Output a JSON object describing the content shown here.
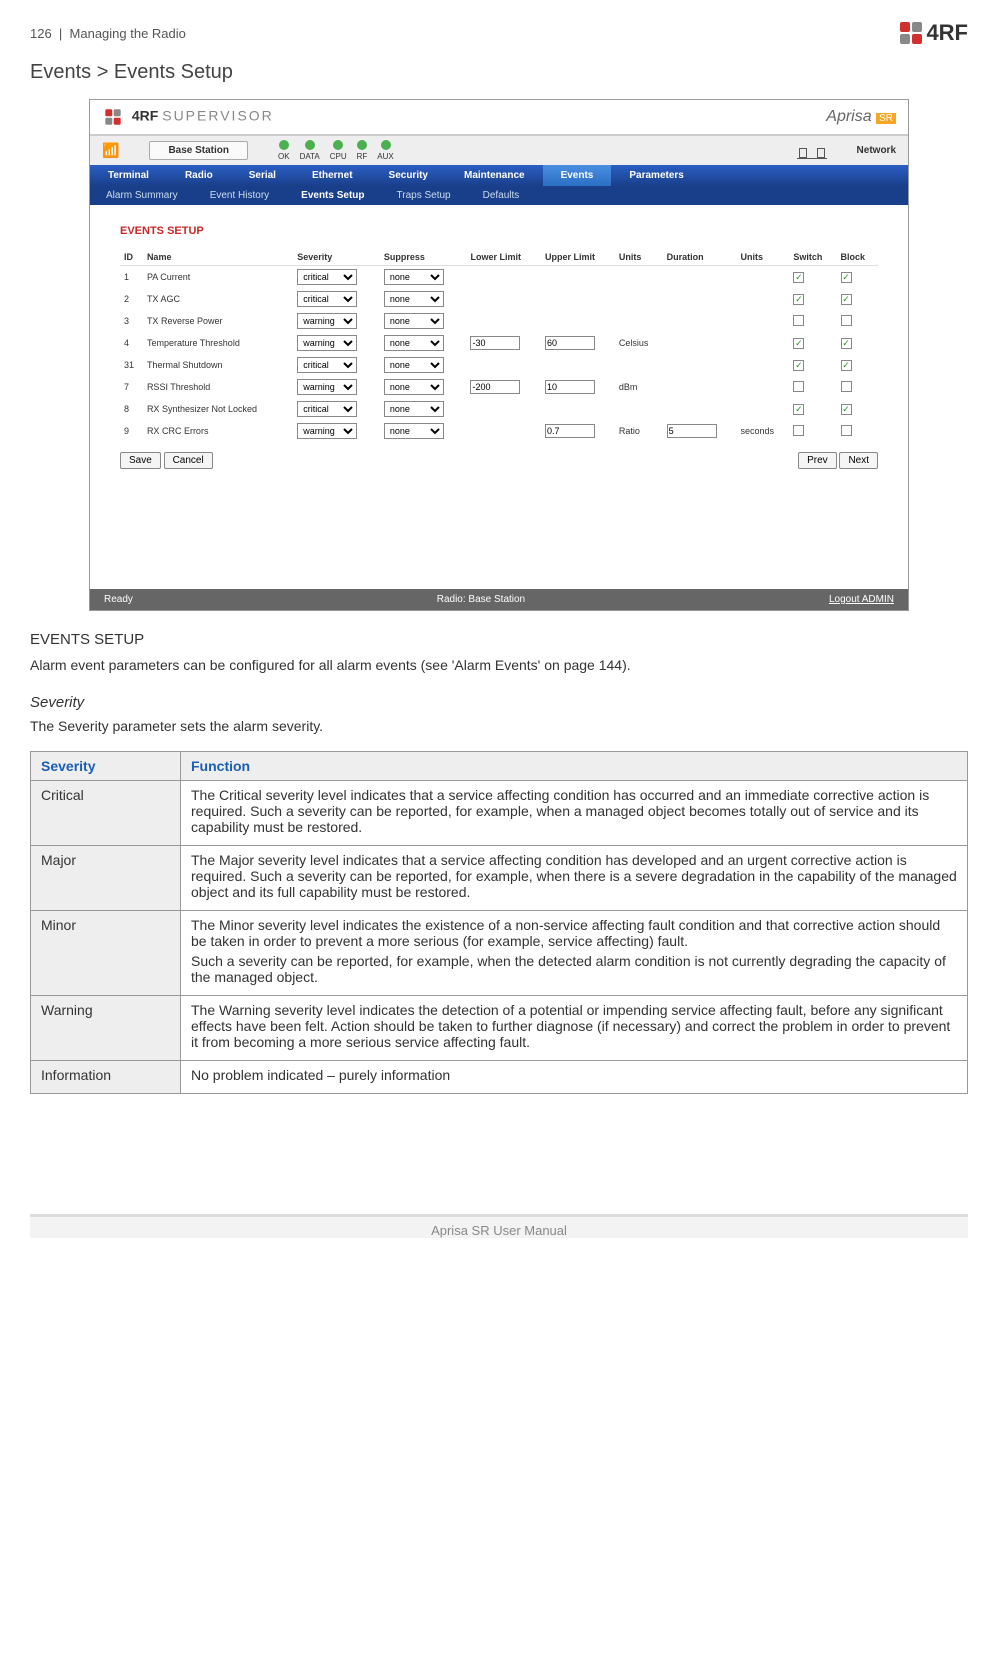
{
  "header": {
    "page_num": "126",
    "section": "Managing the Radio",
    "brand": "4RF"
  },
  "breadcrumb": "Events > Events Setup",
  "screenshot": {
    "supervisor": "SUPERVISOR",
    "aprisa": "Aprisa",
    "sr": "SR",
    "station_btn": "Base Station",
    "leds": [
      "OK",
      "DATA",
      "CPU",
      "RF",
      "AUX"
    ],
    "network": "Network",
    "nav_main": [
      "Terminal",
      "Radio",
      "Serial",
      "Ethernet",
      "Security",
      "Maintenance",
      "Events",
      "Parameters"
    ],
    "nav_main_active": 6,
    "nav_sub": [
      "Alarm Summary",
      "Event History",
      "Events Setup",
      "Traps Setup",
      "Defaults"
    ],
    "nav_sub_active": 2,
    "events_title": "EVENTS SETUP",
    "cols": [
      "ID",
      "Name",
      "Severity",
      "Suppress",
      "Lower Limit",
      "Upper Limit",
      "Units",
      "Duration",
      "Units",
      "Switch",
      "Block"
    ],
    "rows": [
      {
        "id": "1",
        "name": "PA Current",
        "sev": "critical",
        "sup": "none",
        "ll": "",
        "ul": "",
        "u1": "",
        "dur": "",
        "u2": "",
        "sw": true,
        "bl": true
      },
      {
        "id": "2",
        "name": "TX AGC",
        "sev": "critical",
        "sup": "none",
        "ll": "",
        "ul": "",
        "u1": "",
        "dur": "",
        "u2": "",
        "sw": true,
        "bl": true
      },
      {
        "id": "3",
        "name": "TX Reverse Power",
        "sev": "warning",
        "sup": "none",
        "ll": "",
        "ul": "",
        "u1": "",
        "dur": "",
        "u2": "",
        "sw": false,
        "bl": false
      },
      {
        "id": "4",
        "name": "Temperature Threshold",
        "sev": "warning",
        "sup": "none",
        "ll": "-30",
        "ul": "60",
        "u1": "Celsius",
        "dur": "",
        "u2": "",
        "sw": true,
        "bl": true
      },
      {
        "id": "31",
        "name": "Thermal Shutdown",
        "sev": "critical",
        "sup": "none",
        "ll": "",
        "ul": "",
        "u1": "",
        "dur": "",
        "u2": "",
        "sw": true,
        "bl": true
      },
      {
        "id": "7",
        "name": "RSSI Threshold",
        "sev": "warning",
        "sup": "none",
        "ll": "-200",
        "ul": "10",
        "u1": "dBm",
        "dur": "",
        "u2": "",
        "sw": false,
        "bl": false
      },
      {
        "id": "8",
        "name": "RX Synthesizer Not Locked",
        "sev": "critical",
        "sup": "none",
        "ll": "",
        "ul": "",
        "u1": "",
        "dur": "",
        "u2": "",
        "sw": true,
        "bl": true
      },
      {
        "id": "9",
        "name": "RX CRC Errors",
        "sev": "warning",
        "sup": "none",
        "ll": "",
        "ul": "0.7",
        "u1": "Ratio",
        "dur": "5",
        "u2": "seconds",
        "sw": false,
        "bl": false
      }
    ],
    "save": "Save",
    "cancel": "Cancel",
    "prev": "Prev",
    "next": "Next",
    "foot_ready": "Ready",
    "foot_radio": "Radio: Base Station",
    "foot_logout": "Logout ADMIN"
  },
  "setup_h": "EVENTS SETUP",
  "setup_p": "Alarm event parameters can be configured for all alarm events (see 'Alarm Events' on page 144).",
  "sev_h": "Severity",
  "sev_p": "The Severity parameter sets the alarm severity.",
  "sev_table": {
    "h1": "Severity",
    "h2": "Function",
    "rows": [
      {
        "s": "Critical",
        "f": "The Critical severity level indicates that a service affecting condition has occurred and an immediate corrective action is required. Such a severity can be reported, for example, when a managed object becomes totally out of service and its capability must be restored."
      },
      {
        "s": "Major",
        "f": "The Major severity level indicates that a service affecting condition has developed and an urgent corrective action is required. Such a severity can be reported, for example, when there is a severe degradation in the capability of the managed object and its full capability must be restored."
      },
      {
        "s": "Minor",
        "f": "The Minor severity level indicates the existence of a non-service affecting fault condition and that corrective action should be taken in order to prevent a more serious (for example, service affecting) fault.\nSuch a severity can be reported, for example, when the detected alarm condition is not currently degrading the capacity of the managed object."
      },
      {
        "s": "Warning",
        "f": "The Warning severity level indicates the detection of a potential or impending service affecting fault, before any significant effects have been felt. Action should be taken to further diagnose (if necessary) and correct the problem in order to prevent it from becoming a more serious service affecting fault."
      },
      {
        "s": "Information",
        "f": "No problem indicated – purely information"
      }
    ]
  },
  "footer": "Aprisa SR User Manual"
}
